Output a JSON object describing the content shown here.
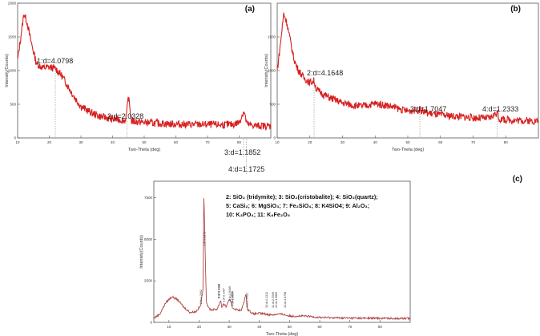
{
  "chart_data": [
    {
      "panel": "(a)",
      "type": "line",
      "xlabel": "Two-Theta (deg)",
      "ylabel": "Intensity(Counts)",
      "xlim": [
        10,
        90
      ],
      "ylim": [
        0,
        2000
      ],
      "xticks": [
        "10",
        "20",
        "30",
        "40",
        "50",
        "60",
        "70",
        "80"
      ],
      "yticks": [
        "0",
        "500",
        "1000",
        "1500",
        "2000"
      ],
      "color": "#d62020",
      "x": [
        10,
        11,
        12,
        13,
        14,
        15,
        16,
        18,
        20,
        22,
        24,
        26,
        28,
        30,
        33,
        36,
        40,
        44,
        44.5,
        45,
        46,
        50,
        55,
        60,
        65,
        70,
        75,
        78,
        80,
        81.5,
        82.5,
        84,
        86,
        88,
        90
      ],
      "y": [
        1150,
        1500,
        1850,
        1720,
        1480,
        1280,
        1100,
        1040,
        1050,
        1030,
        920,
        760,
        600,
        470,
        380,
        320,
        280,
        260,
        380,
        620,
        250,
        230,
        215,
        205,
        200,
        198,
        195,
        200,
        230,
        400,
        200,
        185,
        180,
        178,
        175
      ],
      "annotations": [
        {
          "label": "1:d=4.0798",
          "x": 21.9
        },
        {
          "label": "2:d=2.0328",
          "x": 44.6
        },
        {
          "label": "3:d=1.1852",
          "x": 81.4
        },
        {
          "label": "4:d=1.1725",
          "x": 82.3
        }
      ]
    },
    {
      "panel": "(b)",
      "type": "line",
      "xlabel": "Two-Theta (deg)",
      "ylabel": "Intensity(Counts)",
      "xlim": [
        10,
        90
      ],
      "ylim": [
        0,
        2000
      ],
      "xticks": [
        "10",
        "20",
        "30",
        "40",
        "50",
        "60",
        "70",
        "80"
      ],
      "yticks": [
        "0",
        "500",
        "1000",
        "1500"
      ],
      "color": "#d62020",
      "x": [
        10,
        11,
        12,
        13,
        14,
        15,
        16,
        18,
        20,
        21.3,
        22,
        24,
        26,
        28,
        30,
        32,
        34,
        36,
        40,
        44,
        48,
        50,
        53.7,
        56,
        60,
        65,
        70,
        75,
        77.4,
        78,
        80,
        85,
        90
      ],
      "y": [
        1000,
        1400,
        1850,
        1700,
        1450,
        1200,
        1050,
        900,
        820,
        850,
        720,
        650,
        600,
        560,
        520,
        500,
        480,
        470,
        510,
        480,
        420,
        400,
        420,
        370,
        340,
        320,
        300,
        290,
        380,
        280,
        270,
        260,
        250
      ],
      "annotations": [
        {
          "label": "2:d=4.1648",
          "x": 21.3
        },
        {
          "label": "3:d=1.7047",
          "x": 53.7
        },
        {
          "label": "4:d=1.2333",
          "x": 77.4
        }
      ]
    },
    {
      "panel": "(c)",
      "type": "line",
      "xlabel": "Two-Theta (deg)",
      "ylabel": "Intensity(Counts)",
      "xlim": [
        5,
        90
      ],
      "ylim": [
        0,
        8500
      ],
      "xticks": [
        "10",
        "20",
        "30",
        "40",
        "50",
        "60",
        "70",
        "80"
      ],
      "yticks": [
        "0",
        "2500",
        "5000",
        "7500"
      ],
      "color": "#b04848",
      "x": [
        5,
        7,
        9,
        11,
        13,
        15,
        17,
        19,
        20.5,
        21.3,
        21.6,
        22,
        22.4,
        23,
        24,
        26,
        27.2,
        27.5,
        28,
        29,
        30,
        30.5,
        31,
        32,
        33,
        34,
        35.6,
        36,
        38,
        40,
        42,
        44,
        46,
        48,
        50,
        55,
        60,
        65,
        70,
        75,
        80,
        85,
        90
      ],
      "y": [
        250,
        500,
        1200,
        1550,
        1350,
        900,
        600,
        650,
        1000,
        2000,
        8000,
        4500,
        1300,
        900,
        750,
        800,
        1350,
        900,
        1100,
        950,
        1400,
        1200,
        900,
        800,
        750,
        700,
        1700,
        800,
        500,
        550,
        500,
        450,
        500,
        480,
        380,
        380,
        300,
        280,
        260,
        250,
        250,
        240,
        230
      ],
      "annotations": [
        {
          "label": "1:d=4.0373",
          "x": 21.9
        },
        {
          "label": "2:d=4.2902",
          "x": 20.7
        },
        {
          "label": "3:d=3.1467",
          "x": 28.3
        },
        {
          "label": "4:d=3.3460",
          "x": 26.6
        },
        {
          "label": "5:d=3.3443",
          "x": 26.7
        },
        {
          "label": "6:d=2.8806",
          "x": 31.0
        },
        {
          "label": "7:d=2.8654",
          "x": 31.2
        },
        {
          "label": "8:d=2.9469",
          "x": 30.3
        },
        {
          "label": "9:d=2.4932",
          "x": 36.0
        },
        {
          "label": "10:d=2.1312",
          "x": 42.4
        },
        {
          "label": "11:d=2.0309",
          "x": 44.6
        },
        {
          "label": "12:d=1.9889",
          "x": 45.6
        },
        {
          "label": "13:d=1.8758",
          "x": 48.5
        }
      ],
      "legend_lines": [
        "2: SiO₂ (tridymite); 3: SiO₂(cristobalite); 4: SiO₂(quartz);",
        "5: CaSi₂; 6: MgSiO₃; 7: Fe₂SiO₄; 8: K4SiO4; 9: Al₂O₃;",
        "10: K₃PO₄; 11: K₆Fe₂O₅"
      ]
    }
  ]
}
